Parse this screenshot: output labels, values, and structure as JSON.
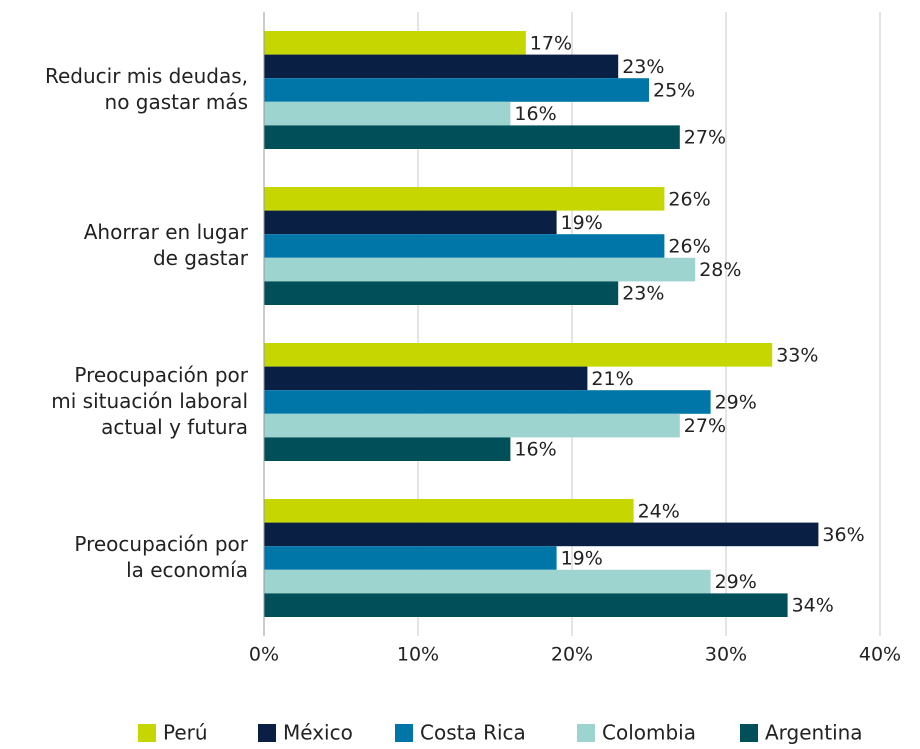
{
  "chart_data": {
    "type": "hbar",
    "categories": [
      "Reducir mis deudas,\nno gastar más",
      "Ahorrar en lugar\nde gastar",
      "Preocupación por\nmi situación laboral\nactual y futura",
      "Preocupación por\nla economía"
    ],
    "series": [
      {
        "name": "Perú",
        "color": "#c5d600",
        "values": [
          17,
          26,
          33,
          24
        ],
        "value_labels": [
          "17%",
          "26%",
          "33%",
          "24%"
        ]
      },
      {
        "name": "México",
        "color": "#0a1f44",
        "values": [
          23,
          19,
          21,
          36
        ],
        "value_labels": [
          "23%",
          "19%",
          "21%",
          "36%"
        ]
      },
      {
        "name": "Costa Rica",
        "color": "#0076a8",
        "values": [
          25,
          26,
          29,
          19
        ],
        "value_labels": [
          "25%",
          "26%",
          "29%",
          "19%"
        ]
      },
      {
        "name": "Colombia",
        "color": "#9dd4cf",
        "values": [
          16,
          28,
          27,
          29
        ],
        "value_labels": [
          "16%",
          "28%",
          "27%",
          "29%"
        ]
      },
      {
        "name": "Argentina",
        "color": "#004f59",
        "values": [
          27,
          23,
          16,
          34
        ],
        "value_labels": [
          "27%",
          "23%",
          "16%",
          "34%"
        ]
      }
    ],
    "xlim": [
      0,
      40
    ],
    "xticks": [
      {
        "value": 0,
        "label": "0%"
      },
      {
        "value": 10,
        "label": "10%"
      },
      {
        "value": 20,
        "label": "20%"
      },
      {
        "value": 30,
        "label": "30%"
      },
      {
        "value": 40,
        "label": "40%"
      }
    ],
    "grid": true,
    "legend": "bottom"
  }
}
